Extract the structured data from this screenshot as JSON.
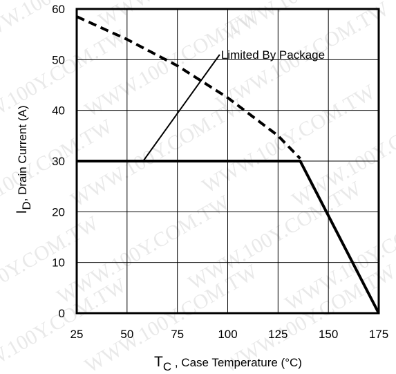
{
  "chart_data": {
    "type": "line",
    "x_label": "Case Temperature (°C)",
    "x_label_symbol": "T",
    "x_label_subscript": "C",
    "x_label_sep": " , ",
    "y_label": "Drain Current (A)",
    "y_label_symbol": "I",
    "y_label_subscript": "D",
    "y_label_sep": ",  ",
    "xlim": [
      25,
      175
    ],
    "ylim": [
      0,
      60
    ],
    "x_ticks": [
      "25",
      "50",
      "75",
      "100",
      "125",
      "150",
      "175"
    ],
    "y_ticks": [
      "0",
      "10",
      "20",
      "30",
      "40",
      "50",
      "60"
    ],
    "grid": true,
    "series": [
      {
        "style": "dashed",
        "points": [
          [
            25,
            58.5
          ],
          [
            50,
            54.0
          ],
          [
            75,
            48.8
          ],
          [
            100,
            42.5
          ],
          [
            125,
            35.0
          ],
          [
            136,
            30.5
          ]
        ]
      },
      {
        "style": "solid",
        "points": [
          [
            25,
            30
          ],
          [
            136,
            30
          ],
          [
            175,
            0
          ]
        ]
      }
    ],
    "annotation": {
      "text": "Limited By Package",
      "pointer_from": [
        58,
        30
      ],
      "pointer_to": [
        96,
        51
      ]
    },
    "watermark": "WWW.100Y.COM.TW"
  }
}
